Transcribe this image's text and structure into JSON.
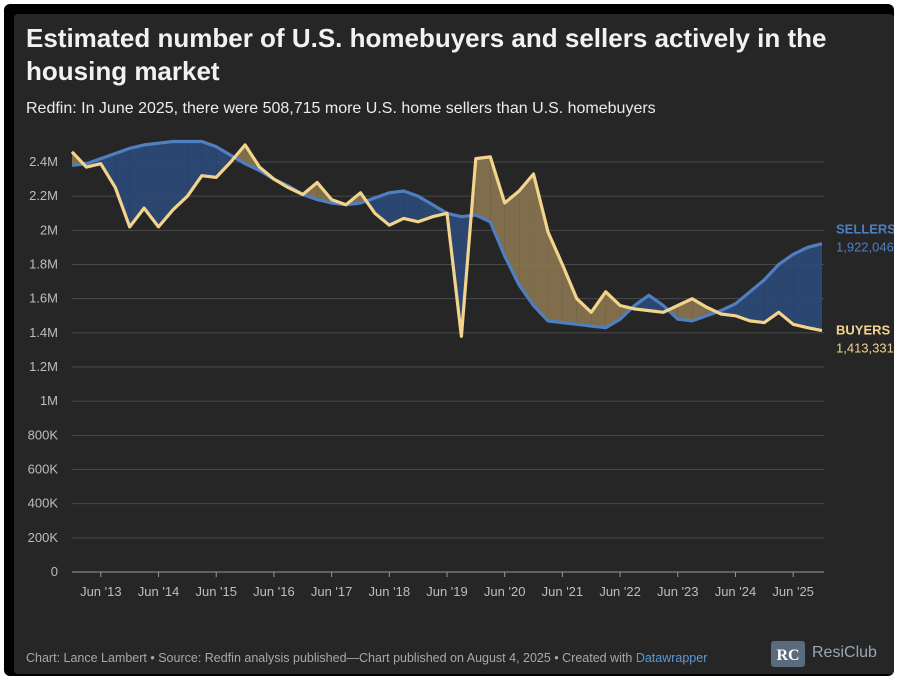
{
  "title": "Estimated number of U.S. homebuyers and sellers actively in the housing market",
  "subtitle": "Redfin: In June 2025, there were 508,715 more U.S. home sellers than U.S. homebuyers",
  "footer": {
    "credit": "Chart: Lance Lambert • Source: Redfin analysis published—Chart published on August 4, 2025 • Created with ",
    "tool": "Datawrapper"
  },
  "brand": {
    "name": "ResiClub",
    "logo_text": "RC"
  },
  "colors": {
    "sellers": "#4f7fc0",
    "buyers": "#f3d48c",
    "sellers_fill": "#2c4a7a",
    "buyers_fill": "#8a7650",
    "grid": "#4a4a4a"
  },
  "chart_data": {
    "type": "area",
    "title": "Estimated number of U.S. homebuyers and sellers actively in the housing market",
    "xlabel": "",
    "ylabel": "",
    "ylim": [
      0,
      2400000
    ],
    "x_start": 2013.0,
    "x_step": 0.25,
    "x_ticks": [
      {
        "t": 2013.5,
        "label": "Jun '13"
      },
      {
        "t": 2014.5,
        "label": "Jun '14"
      },
      {
        "t": 2015.5,
        "label": "Jun '15"
      },
      {
        "t": 2016.5,
        "label": "Jun '16"
      },
      {
        "t": 2017.5,
        "label": "Jun '17"
      },
      {
        "t": 2018.5,
        "label": "Jun '18"
      },
      {
        "t": 2019.5,
        "label": "Jun '19"
      },
      {
        "t": 2020.5,
        "label": "Jun '20"
      },
      {
        "t": 2021.5,
        "label": "Jun '21"
      },
      {
        "t": 2022.5,
        "label": "Jun '22"
      },
      {
        "t": 2023.5,
        "label": "Jun '23"
      },
      {
        "t": 2024.5,
        "label": "Jun '24"
      },
      {
        "t": 2025.5,
        "label": "Jun '25"
      }
    ],
    "y_ticks": [
      {
        "v": 0,
        "label": "0"
      },
      {
        "v": 200000,
        "label": "200K"
      },
      {
        "v": 400000,
        "label": "400K"
      },
      {
        "v": 600000,
        "label": "600K"
      },
      {
        "v": 800000,
        "label": "800K"
      },
      {
        "v": 1000000,
        "label": "1M"
      },
      {
        "v": 1200000,
        "label": "1.2M"
      },
      {
        "v": 1400000,
        "label": "1.4M"
      },
      {
        "v": 1600000,
        "label": "1.6M"
      },
      {
        "v": 1800000,
        "label": "1.8M"
      },
      {
        "v": 2000000,
        "label": "2M"
      },
      {
        "v": 2200000,
        "label": "2.2M"
      },
      {
        "v": 2400000,
        "label": "2.4M"
      }
    ],
    "series": [
      {
        "name": "SELLERS",
        "end_label": "1,922,046",
        "values": [
          2380000,
          2390000,
          2420000,
          2450000,
          2480000,
          2500000,
          2510000,
          2520000,
          2520000,
          2520000,
          2490000,
          2440000,
          2390000,
          2350000,
          2300000,
          2260000,
          2210000,
          2180000,
          2160000,
          2150000,
          2160000,
          2190000,
          2220000,
          2230000,
          2200000,
          2150000,
          2100000,
          2080000,
          2090000,
          2050000,
          1850000,
          1680000,
          1560000,
          1470000,
          1460000,
          1450000,
          1440000,
          1430000,
          1480000,
          1560000,
          1620000,
          1560000,
          1480000,
          1470000,
          1500000,
          1530000,
          1570000,
          1640000,
          1710000,
          1800000,
          1860000,
          1900000,
          1922046
        ]
      },
      {
        "name": "BUYERS",
        "end_label": "1,413,331",
        "values": [
          2460000,
          2370000,
          2390000,
          2250000,
          2020000,
          2130000,
          2020000,
          2120000,
          2200000,
          2320000,
          2310000,
          2400000,
          2500000,
          2370000,
          2300000,
          2250000,
          2210000,
          2280000,
          2180000,
          2150000,
          2220000,
          2100000,
          2030000,
          2070000,
          2050000,
          2080000,
          2100000,
          1380000,
          2420000,
          2430000,
          2160000,
          2230000,
          2330000,
          1990000,
          1800000,
          1600000,
          1520000,
          1640000,
          1560000,
          1540000,
          1530000,
          1520000,
          1560000,
          1600000,
          1550000,
          1510000,
          1500000,
          1470000,
          1460000,
          1520000,
          1450000,
          1430000,
          1413331
        ]
      }
    ]
  }
}
